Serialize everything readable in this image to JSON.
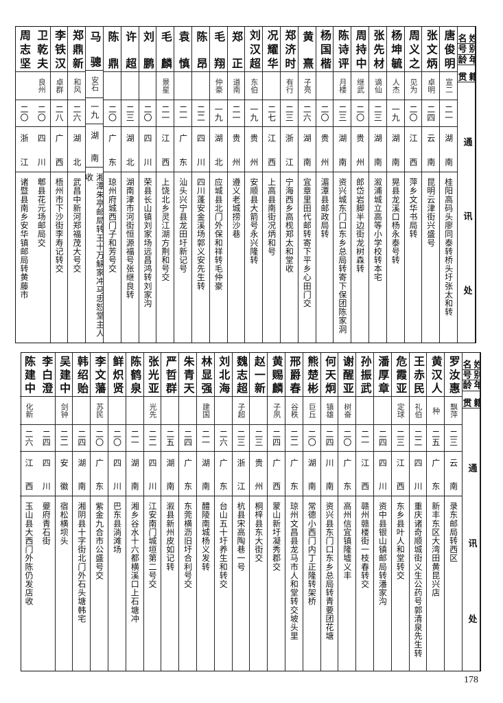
{
  "header": {
    "name": "姓名",
    "alias": "别号",
    "age": "年龄",
    "native": "籍贯",
    "address": "通讯处"
  },
  "tables": [
    {
      "rows": [
        {
          "name": "唐俊明",
          "alias": "宣二",
          "age": "二一",
          "native": "湖南",
          "address": "桂阳高码头廖同泰转桥头圩张太和转"
        },
        {
          "name": "张文炳",
          "alias": "卓明",
          "age": "二四",
          "native": "云南",
          "address": "昆明云津街兴盛号"
        },
        {
          "name": "周义之",
          "alias": "见为",
          "age": "二〇",
          "native": "江西",
          "address": "萍乡文华书局转"
        },
        {
          "name": "杨坤毓",
          "alias": "人杰",
          "age": "一九",
          "native": "湖南",
          "address": "晃县龙溪口杨永泰号转"
        },
        {
          "name": "张先材",
          "alias": "谪仙",
          "age": "二三",
          "native": "湖南",
          "address": "溆浦城立高等小学校转本宅"
        },
        {
          "name": "周持中",
          "alias": "继武",
          "age": "二〇",
          "native": "贵州",
          "address": "郎岱岩脚半边街龙树森转"
        },
        {
          "name": "陈诗评",
          "alias": "月楼",
          "age": "二三",
          "native": "湖南",
          "address": "资兴城东门口东乡总局转寄下保团陈家洞"
        },
        {
          "name": "杨国楷",
          "alias": "",
          "age": "二〇",
          "native": "贵州",
          "address": "湄潭县邮政局转"
        },
        {
          "name": "黄熹",
          "alias": "子亮",
          "age": "二六",
          "native": "湖南",
          "address": "宜章里田代邮转寄下平乡心田门交"
        },
        {
          "name": "郑济时",
          "alias": "有行",
          "age": "二三",
          "native": "浙江",
          "address": "宁海西乡高枧郑太和堂收"
        },
        {
          "name": "况耀华",
          "alias": "",
          "age": "二七",
          "native": "江西",
          "address": "上高县南街况炳和号"
        },
        {
          "name": "刘汉超",
          "alias": "东伯",
          "age": "一九",
          "native": "贵州",
          "address": "安顺县大箭号永兴隆转"
        },
        {
          "name": "郑正",
          "alias": "道南",
          "age": "二一",
          "native": "贵州",
          "address": "遵义老城捞沙巷"
        },
        {
          "name": "毛翔",
          "alias": "仲豪",
          "age": "一九",
          "native": "湖北",
          "address": "应城县北门外保和祥转毛仲豪"
        },
        {
          "name": "陈昂",
          "alias": "",
          "age": "二二",
          "native": "四川",
          "address": "四川蓬安金溪场郭义安先生转"
        },
        {
          "name": "袁慎",
          "alias": "",
          "age": "二一",
          "native": "广东",
          "address": "汕头兴宁县龙田圩新记号"
        },
        {
          "name": "毛麟",
          "alias": "景星",
          "age": "二一",
          "native": "江西",
          "address": "上饶北乡灵江湖方荆和号交"
        },
        {
          "name": "刘鹏",
          "alias": "",
          "age": "二〇",
          "native": "四川",
          "address": "荣县长山镇刘家场远昌鸿转刘家沟"
        },
        {
          "name": "许超",
          "alias": "",
          "age": "二三",
          "native": "湖北",
          "address": "湖南津市河街恒源福号张继良转"
        },
        {
          "name": "陈鼎",
          "alias": "",
          "age": "二〇",
          "native": "广东",
          "address": "琼州府城西门子和芳号交"
        },
        {
          "name": "马骢",
          "alias": "安石",
          "age": "一九",
          "native": "湖南",
          "address": "湘潭朱亭邮局转王十万觨家冲马忠恕堂主人收"
        },
        {
          "name": "郑鼎新",
          "alias": "和风",
          "age": "二六",
          "native": "湖北",
          "address": "武昌中新河郑福茂大号交"
        },
        {
          "name": "李铁汉",
          "alias": "卓群",
          "age": "二八",
          "native": "广西",
          "address": "梧州市下沙街李寿记转交"
        },
        {
          "name": "卫乾夫",
          "alias": "良州",
          "age": "二〇",
          "native": "四川",
          "address": "郫县花元场邮局交"
        },
        {
          "name": "周志坚",
          "alias": "",
          "age": "二〇",
          "native": "浙江",
          "address": "诸暨县南乡安华镇邮局转黄藤市"
        }
      ]
    },
    {
      "rows": [
        {
          "name": "罗汝惠",
          "alias": "飘萍",
          "age": "二三",
          "native": "云南",
          "address": "录东邮局转西区"
        },
        {
          "name": "黄汉人",
          "alias": "种",
          "age": "二五",
          "native": "广东",
          "address": "新丰东区大湾田黄昆兴店"
        },
        {
          "name": "王赤民",
          "alias": "礼伯",
          "age": "二二",
          "native": "四川",
          "address": "重庆诸奇顺城街义生公药号郭清泉先生转"
        },
        {
          "name": "危霞亚",
          "alias": "定球",
          "age": "二三",
          "native": "江西",
          "address": "东乡县叶人和堂转交"
        },
        {
          "name": "潘厚章",
          "alias": "",
          "age": "二四",
          "native": "四川",
          "address": "资中县银山镇邮局转潘家沟"
        },
        {
          "name": "孙振武",
          "alias": "",
          "age": "二一",
          "native": "江西",
          "address": "赣州赣楼街一枝春转交"
        },
        {
          "name": "谢醒亚",
          "alias": "树奋",
          "age": "二〇",
          "native": "广东",
          "address": "高州信宜镇隆墟义丰"
        },
        {
          "name": "何天炯",
          "alias": "镇雄",
          "age": "二四",
          "native": "川南",
          "address": "资兴县东门口东乡总局转青要团花塘"
        },
        {
          "name": "熊楚彬",
          "alias": "巨丘",
          "age": "二〇",
          "native": "湖南",
          "address": "常德小西门内丁正隆转架桥"
        },
        {
          "name": "邢爵春",
          "alias": "谷秩",
          "age": "二二",
          "native": "广东",
          "address": "琼州文昌县龙马市人和堂转交坡头里"
        },
        {
          "name": "黄赐麟",
          "alias": "子夙",
          "age": "二四",
          "native": "广西",
          "address": "蒙山新圩凝秀郡交"
        },
        {
          "name": "赵一新",
          "alias": "",
          "age": "二三",
          "native": "贵州",
          "address": "桐梓县东大街交"
        },
        {
          "name": "魏志超",
          "alias": "子超",
          "age": "二三",
          "native": "浙江",
          "address": "杭县宋高陶巷一号"
        },
        {
          "name": "刘北海",
          "alias": "",
          "age": "二六",
          "native": "广东",
          "address": "台山五十圩养生和转交"
        },
        {
          "name": "林显强",
          "alias": "建国",
          "age": "二一",
          "native": "湖南",
          "address": "醴陵南城杨义发转"
        },
        {
          "name": "朱青天",
          "alias": "",
          "age": "二四",
          "native": "广东",
          "address": "东莞横沥旧圩合利号交"
        },
        {
          "name": "严哲群",
          "alias": "",
          "age": "二五",
          "native": "湖南",
          "address": "溆县新州皮如记转"
        },
        {
          "name": "张光亚",
          "alias": "光先",
          "age": "二二",
          "native": "四川",
          "address": "江安南门城垣第二号交"
        },
        {
          "name": "陈鹤泉",
          "alias": "",
          "age": "二一",
          "native": "湖南",
          "address": "湘乡谷水十六都横溪口上石塘冲"
        },
        {
          "name": "鲜炽贤",
          "alias": "",
          "age": "二〇",
          "native": "四川",
          "address": "巴东县淌滩场"
        },
        {
          "name": "李文藩",
          "alias": "苏民",
          "age": "二〇",
          "native": "广东",
          "address": "紫金九合市公盛号交"
        },
        {
          "name": "韩绍贻",
          "alias": "",
          "age": "二四",
          "native": "湖南",
          "address": "湘阴县十字街北门外石头塘韩宅"
        },
        {
          "name": "吴建中",
          "alias": "剑钟",
          "age": "二二",
          "native": "安徽",
          "address": "宿松横坝头"
        },
        {
          "name": "李白澄",
          "alias": "",
          "age": "二四",
          "native": "四川",
          "address": "夔府青石街"
        },
        {
          "name": "陈建中",
          "alias": "化新",
          "age": "二六",
          "native": "江西",
          "address": "玉山县大西门外陈仍发店收"
        }
      ]
    }
  ],
  "page_number": "178"
}
